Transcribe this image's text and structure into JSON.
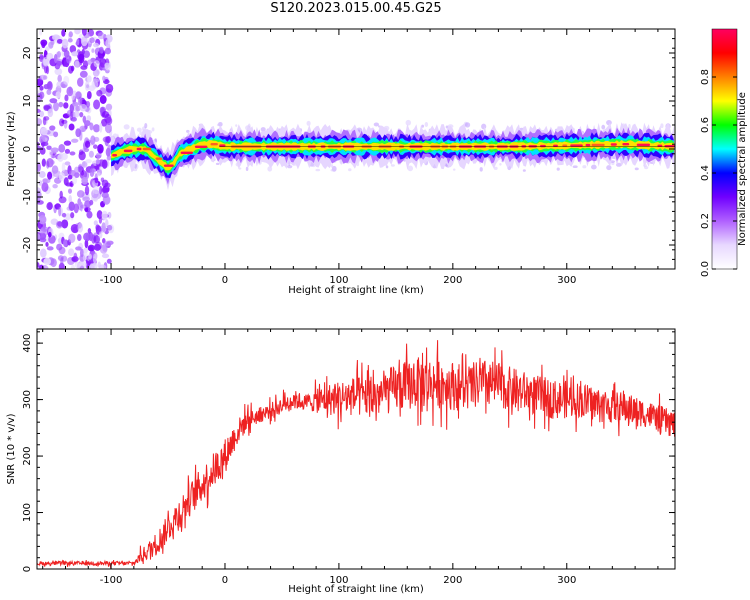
{
  "title": "S120.2023.015.00.45.G25",
  "chart_data": [
    {
      "type": "heatmap",
      "xlabel": "Height of straight line (km)",
      "ylabel": "Frequency (Hz)",
      "xlim": [
        -165,
        395
      ],
      "ylim": [
        -25,
        25
      ],
      "xticks": [
        -100,
        0,
        100,
        200,
        300
      ],
      "xtick_labels": [
        "-100",
        "0",
        "100",
        "200",
        "300"
      ],
      "yticks": [
        -20,
        -10,
        0,
        10,
        20
      ],
      "ytick_labels": [
        "-20",
        "-10",
        "0",
        "10",
        "20"
      ],
      "colorbar": {
        "label": "Normalized spectral amplitude",
        "range": [
          0,
          1
        ],
        "ticks": [
          0.0,
          0.2,
          0.4,
          0.6,
          0.8
        ],
        "tick_labels": [
          "0.0",
          "0.2",
          "0.4",
          "0.6",
          "0.8"
        ],
        "colors": [
          "#ffffff",
          "#e8d8ff",
          "#b060ff",
          "#7000ff",
          "#0000ff",
          "#00ffff",
          "#00ff00",
          "#ffff00",
          "#ff8000",
          "#ff0000",
          "#ff0060"
        ]
      },
      "noise_region_x": [
        -165,
        -100
      ],
      "ridge": [
        [
          -100,
          -1.5
        ],
        [
          -90,
          -0.5
        ],
        [
          -80,
          0
        ],
        [
          -70,
          0
        ],
        [
          -60,
          -2
        ],
        [
          -50,
          -4
        ],
        [
          -45,
          -3
        ],
        [
          -40,
          -1
        ],
        [
          -30,
          0
        ],
        [
          -20,
          1
        ],
        [
          -10,
          1
        ],
        [
          0,
          0.5
        ],
        [
          50,
          0.5
        ],
        [
          100,
          0.5
        ],
        [
          150,
          0.5
        ],
        [
          200,
          0.5
        ],
        [
          250,
          0.5
        ],
        [
          300,
          0.7
        ],
        [
          350,
          1
        ],
        [
          395,
          0.5
        ]
      ]
    },
    {
      "type": "line",
      "xlabel": "Height of straight line (km)",
      "ylabel": "SNR (10 * v/v)",
      "xlim": [
        -165,
        395
      ],
      "ylim": [
        0,
        425
      ],
      "xticks": [
        -100,
        0,
        100,
        200,
        300
      ],
      "xtick_labels": [
        "-100",
        "0",
        "100",
        "200",
        "300"
      ],
      "yticks": [
        0,
        100,
        200,
        300,
        400
      ],
      "ytick_labels": [
        "0",
        "100",
        "200",
        "300",
        "400"
      ],
      "color": "#ee2222",
      "envelope": {
        "x": [
          -165,
          -80,
          -75,
          -60,
          -40,
          -20,
          0,
          10,
          20,
          30,
          45,
          60,
          70,
          90,
          110,
          130,
          150,
          170,
          190,
          210,
          230,
          250,
          270,
          290,
          310,
          330,
          350,
          370,
          395
        ],
        "mean": [
          10,
          10,
          20,
          45,
          100,
          150,
          200,
          240,
          265,
          272,
          285,
          300,
          295,
          300,
          305,
          305,
          320,
          330,
          330,
          320,
          330,
          320,
          310,
          300,
          300,
          290,
          285,
          275,
          255
        ],
        "spread": [
          5,
          5,
          15,
          30,
          40,
          45,
          45,
          35,
          25,
          20,
          20,
          25,
          20,
          40,
          50,
          55,
          60,
          65,
          65,
          60,
          60,
          55,
          50,
          50,
          45,
          45,
          40,
          35,
          35
        ]
      }
    }
  ]
}
